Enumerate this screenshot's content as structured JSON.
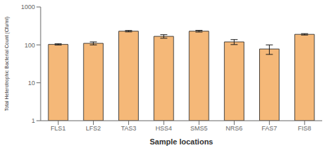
{
  "chart_data": {
    "type": "bar",
    "categories": [
      "FLS1",
      "LFS2",
      "TAS3",
      "HSS4",
      "SMS5",
      "NRS6",
      "FAS7",
      "FIS8"
    ],
    "values": [
      103,
      110,
      230,
      168,
      230,
      120,
      78,
      190
    ],
    "errors": [
      4,
      10,
      10,
      18,
      12,
      18,
      22,
      8
    ],
    "color": "#F5B878",
    "xlabel": "Sample locations",
    "ylabel": "Total Heterotrophic Bacterial Count (Cfu/ml)",
    "ylim": [
      1,
      1000
    ],
    "yticks": [
      1,
      10,
      100,
      1000
    ],
    "log": "y",
    "grid": false
  }
}
